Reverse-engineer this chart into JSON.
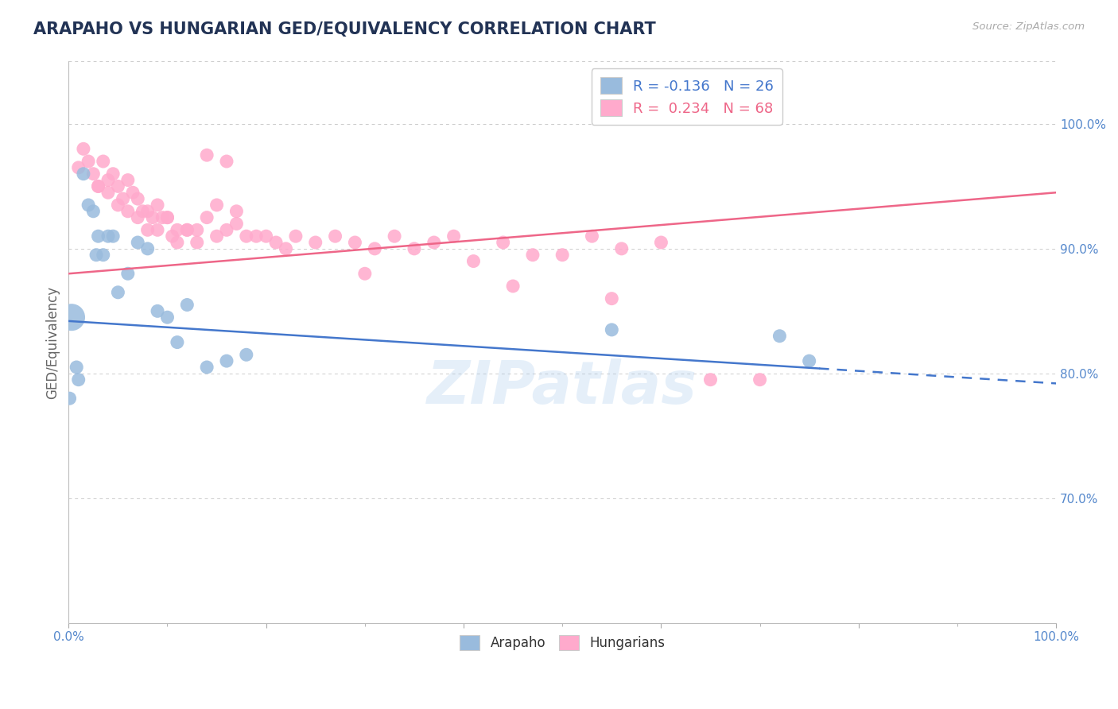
{
  "title": "ARAPAHO VS HUNGARIAN GED/EQUIVALENCY CORRELATION CHART",
  "source_text": "Source: ZipAtlas.com",
  "ylabel": "GED/Equivalency",
  "xlim": [
    0.0,
    100.0
  ],
  "ylim": [
    60.0,
    105.0
  ],
  "yticks": [
    70.0,
    80.0,
    90.0,
    100.0
  ],
  "ytick_labels": [
    "70.0%",
    "80.0%",
    "90.0%",
    "100.0%"
  ],
  "xtick_labels_left": "0.0%",
  "xtick_labels_right": "100.0%",
  "blue_color": "#99BBDD",
  "pink_color": "#FFAACC",
  "blue_line_color": "#4477CC",
  "pink_line_color": "#EE6688",
  "R_blue": -0.136,
  "N_blue": 26,
  "R_pink": 0.234,
  "N_pink": 68,
  "blue_intercept": 84.2,
  "blue_slope": -0.05,
  "pink_intercept": 88.0,
  "pink_slope": 0.065,
  "blue_dash_start_x": 76.0,
  "blue_x": [
    0.3,
    1.5,
    2.0,
    2.5,
    3.0,
    3.5,
    4.5,
    5.0,
    6.0,
    7.0,
    8.0,
    9.0,
    10.0,
    11.0,
    12.0,
    14.0,
    16.0,
    18.0,
    55.0,
    72.0,
    75.0,
    2.8,
    4.0,
    0.8,
    1.0,
    0.1
  ],
  "blue_y": [
    84.5,
    96.0,
    93.5,
    93.0,
    91.0,
    89.5,
    91.0,
    86.5,
    88.0,
    90.5,
    90.0,
    85.0,
    84.5,
    82.5,
    85.5,
    80.5,
    81.0,
    81.5,
    83.5,
    83.0,
    81.0,
    89.5,
    91.0,
    80.5,
    79.5,
    78.0
  ],
  "blue_large_marker_idx": 0,
  "pink_x": [
    1.0,
    1.5,
    2.0,
    2.5,
    3.0,
    3.5,
    4.0,
    4.5,
    5.0,
    5.5,
    6.0,
    6.5,
    7.0,
    7.5,
    8.0,
    8.5,
    9.0,
    9.5,
    10.0,
    10.5,
    11.0,
    12.0,
    13.0,
    14.0,
    15.0,
    16.0,
    17.0,
    18.0,
    19.0,
    20.0,
    21.0,
    22.0,
    23.0,
    25.0,
    27.0,
    29.0,
    31.0,
    33.0,
    35.0,
    37.0,
    39.0,
    41.0,
    44.0,
    47.0,
    50.0,
    53.0,
    56.0,
    60.0,
    65.0,
    3.0,
    4.0,
    5.0,
    6.0,
    7.0,
    8.0,
    9.0,
    10.0,
    11.0,
    12.0,
    13.0,
    14.0,
    15.0,
    16.0,
    17.0,
    30.0,
    45.0,
    55.0,
    70.0
  ],
  "pink_y": [
    96.5,
    98.0,
    97.0,
    96.0,
    95.0,
    97.0,
    95.5,
    96.0,
    95.0,
    94.0,
    95.5,
    94.5,
    94.0,
    93.0,
    93.0,
    92.5,
    93.5,
    92.5,
    92.5,
    91.0,
    91.5,
    91.5,
    91.5,
    92.5,
    91.0,
    91.5,
    92.0,
    91.0,
    91.0,
    91.0,
    90.5,
    90.0,
    91.0,
    90.5,
    91.0,
    90.5,
    90.0,
    91.0,
    90.0,
    90.5,
    91.0,
    89.0,
    90.5,
    89.5,
    89.5,
    91.0,
    90.0,
    90.5,
    79.5,
    95.0,
    94.5,
    93.5,
    93.0,
    92.5,
    91.5,
    91.5,
    92.5,
    90.5,
    91.5,
    90.5,
    97.5,
    93.5,
    97.0,
    93.0,
    88.0,
    87.0,
    86.0,
    79.5
  ],
  "watermark_text": "ZIPatlas",
  "watermark_color": "#AACCEE",
  "watermark_alpha": 0.3,
  "background_color": "#FFFFFF",
  "grid_color": "#CCCCCC",
  "axis_label_color": "#5588CC",
  "title_color": "#223355",
  "source_color": "#AAAAAA",
  "ylabel_color": "#666666"
}
